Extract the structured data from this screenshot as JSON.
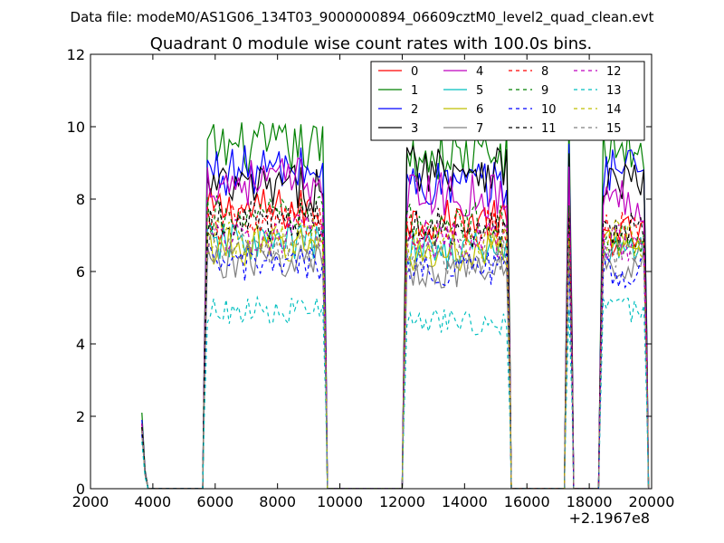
{
  "suptitle": "Data file: modeM0/AS1G06_134T03_9000000894_06609cztM0_level2_quad_clean.evt",
  "chart_data": {
    "type": "line",
    "title": "Quadrant 0 module wise count rates with 100.0s bins.",
    "xlabel": "",
    "ylabel": "",
    "x_offset_label": "+2.1967e8",
    "xlim": [
      2000,
      20000
    ],
    "ylim": [
      0,
      12
    ],
    "xticks": [
      2000,
      4000,
      6000,
      8000,
      10000,
      12000,
      14000,
      16000,
      18000,
      20000
    ],
    "yticks": [
      0,
      2,
      4,
      6,
      8,
      10,
      12
    ],
    "legend_position": "top-right",
    "legend_columns": 4,
    "segments": [
      {
        "start": 5650,
        "end": 9550
      },
      {
        "start": 12050,
        "end": 15450
      },
      {
        "start": 17250,
        "end": 17450
      },
      {
        "start": 18350,
        "end": 19850
      }
    ],
    "series": [
      {
        "name": "0",
        "color": "#ff0000",
        "dash": "solid",
        "levels": [
          1.8,
          7.7,
          7.4,
          7.9,
          7.0
        ]
      },
      {
        "name": "1",
        "color": "#008000",
        "dash": "solid",
        "levels": [
          2.1,
          9.4,
          9.2,
          9.6,
          9.4
        ]
      },
      {
        "name": "2",
        "color": "#0000ff",
        "dash": "solid",
        "levels": [
          1.9,
          8.8,
          8.4,
          9.0,
          8.9
        ]
      },
      {
        "name": "3",
        "color": "#000000",
        "dash": "solid",
        "levels": [
          1.8,
          8.3,
          8.9,
          8.8,
          8.5
        ]
      },
      {
        "name": "4",
        "color": "#bf00bf",
        "dash": "solid",
        "levels": [
          1.8,
          8.5,
          8.1,
          8.5,
          8.0
        ]
      },
      {
        "name": "5",
        "color": "#00bfbf",
        "dash": "solid",
        "levels": [
          1.6,
          6.8,
          6.6,
          6.9,
          6.6
        ]
      },
      {
        "name": "6",
        "color": "#bfbf00",
        "dash": "solid",
        "levels": [
          1.6,
          6.7,
          6.5,
          6.8,
          6.7
        ]
      },
      {
        "name": "7",
        "color": "#808080",
        "dash": "solid",
        "levels": [
          1.5,
          6.3,
          6.0,
          6.4,
          6.2
        ]
      },
      {
        "name": "8",
        "color": "#ff0000",
        "dash": "dashed",
        "levels": [
          1.7,
          7.3,
          7.2,
          7.6,
          7.1
        ]
      },
      {
        "name": "9",
        "color": "#008000",
        "dash": "dashed",
        "levels": [
          1.7,
          7.5,
          7.3,
          7.7,
          7.0
        ]
      },
      {
        "name": "10",
        "color": "#0000ff",
        "dash": "dashed",
        "levels": [
          1.5,
          6.2,
          6.1,
          6.3,
          6.0
        ]
      },
      {
        "name": "11",
        "color": "#000000",
        "dash": "dashed",
        "levels": [
          1.7,
          7.4,
          7.2,
          7.5,
          7.3
        ]
      },
      {
        "name": "12",
        "color": "#bf00bf",
        "dash": "dashed",
        "levels": [
          1.6,
          7.0,
          6.9,
          7.1,
          6.8
        ]
      },
      {
        "name": "13",
        "color": "#00bfbf",
        "dash": "dashed",
        "levels": [
          1.3,
          4.9,
          4.6,
          5.0,
          4.9
        ]
      },
      {
        "name": "14",
        "color": "#bfbf00",
        "dash": "dashed",
        "levels": [
          1.6,
          6.9,
          6.8,
          7.0,
          6.9
        ]
      },
      {
        "name": "15",
        "color": "#808080",
        "dash": "dashed",
        "levels": [
          1.6,
          6.6,
          6.4,
          6.8,
          6.5
        ]
      }
    ]
  }
}
